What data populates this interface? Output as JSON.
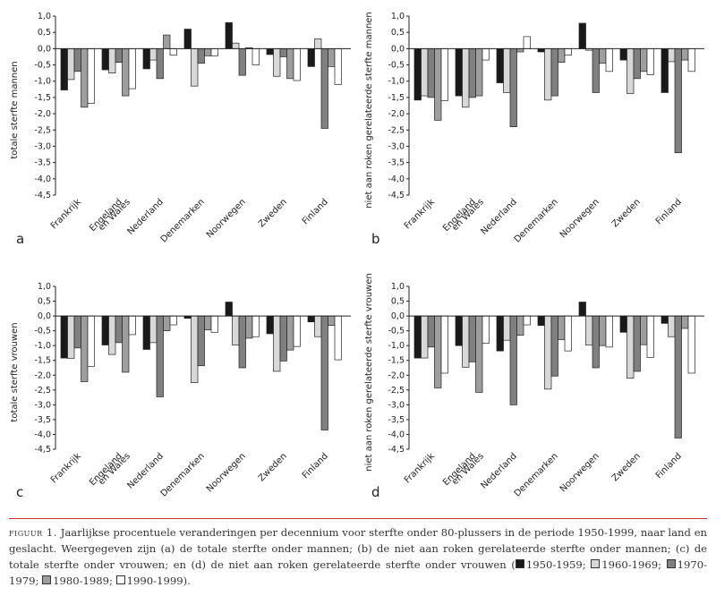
{
  "chart_data": [
    {
      "type": "bar",
      "panel_label": "a",
      "ylabel": "totale sterfte mannen",
      "ylim": [
        -4.5,
        1.0
      ],
      "yticks": [
        "1,0",
        "0,5",
        "0,0",
        "-0,5",
        "-1,0",
        "-1,5",
        "-2,0",
        "-2,5",
        "-3,0",
        "-3,5",
        "-4,0",
        "-4,5"
      ],
      "categories": [
        "Frankrijk",
        "Engeland|en Wales",
        "Nederland",
        "Denemarken",
        "Noorwegen",
        "Zweden",
        "Finland"
      ],
      "series": [
        {
          "name": "1950-1959",
          "color": "#1a1a1a",
          "values": [
            -1.27,
            -0.65,
            -0.62,
            0.6,
            0.8,
            -0.18,
            -0.55
          ]
        },
        {
          "name": "1960-1969",
          "color": "#d8d8d8",
          "values": [
            -0.95,
            -0.75,
            -0.35,
            -1.15,
            0.17,
            -0.85,
            0.3
          ]
        },
        {
          "name": "1970-1979",
          "color": "#808080",
          "values": [
            -0.7,
            -0.42,
            -0.92,
            -0.45,
            -0.82,
            -0.25,
            -2.45
          ]
        },
        {
          "name": "1980-1989",
          "color": "#9e9e9e",
          "values": [
            -1.8,
            -1.45,
            0.42,
            -0.22,
            0.03,
            -0.92,
            -0.55
          ]
        },
        {
          "name": "1990-1999",
          "color": "#ffffff",
          "values": [
            -1.68,
            -1.23,
            -0.2,
            -0.22,
            -0.5,
            -0.98,
            -1.1
          ]
        }
      ]
    },
    {
      "type": "bar",
      "panel_label": "b",
      "ylabel": "niet aan roken gerelateerde sterfte mannen",
      "ylim": [
        -4.5,
        1.0
      ],
      "yticks": [
        "1,0",
        "0,5",
        "0,0",
        "-0,5",
        "-1,0",
        "-1,5",
        "-2,0",
        "-2,5",
        "-3,0",
        "-3,5",
        "-4,0",
        "-4,5"
      ],
      "categories": [
        "Frankrijk",
        "Engeland|en Wales",
        "Nederland",
        "Denemarken",
        "Noorwegen",
        "Zweden",
        "Finland"
      ],
      "series": [
        {
          "name": "1950-1959",
          "color": "#1a1a1a",
          "values": [
            -1.58,
            -1.45,
            -1.05,
            -0.1,
            0.78,
            -0.35,
            -1.35
          ]
        },
        {
          "name": "1960-1969",
          "color": "#d8d8d8",
          "values": [
            -1.45,
            -1.8,
            -1.35,
            -1.58,
            -0.05,
            -1.38,
            -0.4
          ]
        },
        {
          "name": "1970-1979",
          "color": "#808080",
          "values": [
            -1.5,
            -1.5,
            -2.4,
            -1.45,
            -1.35,
            -0.92,
            -3.2
          ]
        },
        {
          "name": "1980-1989",
          "color": "#9e9e9e",
          "values": [
            -2.2,
            -1.45,
            -0.1,
            -0.42,
            -0.45,
            -0.7,
            -0.35
          ]
        },
        {
          "name": "1990-1999",
          "color": "#ffffff",
          "values": [
            -1.6,
            -0.35,
            0.37,
            -0.2,
            -0.7,
            -0.8,
            -0.7
          ]
        }
      ]
    },
    {
      "type": "bar",
      "panel_label": "c",
      "ylabel": "totale sterfte vrouwen",
      "ylim": [
        -4.5,
        1.0
      ],
      "yticks": [
        "1,0",
        "0,5",
        "0,0",
        "-0,5",
        "-1,0",
        "-1,5",
        "-2,0",
        "-2,5",
        "-3,0",
        "-3,5",
        "-4,0",
        "-4,5"
      ],
      "categories": [
        "Frankrijk",
        "Engeland|en Wales",
        "Nederland",
        "Denemarken",
        "Noorwegen",
        "Zweden",
        "Finland"
      ],
      "series": [
        {
          "name": "1950-1959",
          "color": "#1a1a1a",
          "values": [
            -1.42,
            -0.98,
            -1.13,
            -0.08,
            0.47,
            -0.6,
            -0.2
          ]
        },
        {
          "name": "1960-1969",
          "color": "#d8d8d8",
          "values": [
            -1.43,
            -1.3,
            -0.9,
            -2.25,
            -0.98,
            -1.87,
            -0.7
          ]
        },
        {
          "name": "1970-1979",
          "color": "#808080",
          "values": [
            -1.08,
            -0.9,
            -2.73,
            -1.68,
            -1.75,
            -1.52,
            -3.85
          ]
        },
        {
          "name": "1980-1989",
          "color": "#9e9e9e",
          "values": [
            -2.22,
            -1.9,
            -0.5,
            -0.47,
            -0.75,
            -1.15,
            -0.32
          ]
        },
        {
          "name": "1990-1999",
          "color": "#ffffff",
          "values": [
            -1.7,
            -0.63,
            -0.3,
            -0.55,
            -0.7,
            -1.03,
            -1.48
          ]
        }
      ]
    },
    {
      "type": "bar",
      "panel_label": "d",
      "ylabel": "niet aan roken gerelateerde sterfte vrouwen",
      "ylim": [
        -4.5,
        1.0
      ],
      "yticks": [
        "1,0",
        "0,5",
        "0,0",
        "-0,5",
        "-1,0",
        "-1,5",
        "-2,0",
        "-2,5",
        "-3,0",
        "-3,5",
        "-4,0",
        "-4,5"
      ],
      "categories": [
        "Frankrijk",
        "Engeland|en Wales",
        "Nederland",
        "Denemarken",
        "Noorwegen",
        "Zweden",
        "Finland"
      ],
      "series": [
        {
          "name": "1950-1959",
          "color": "#1a1a1a",
          "values": [
            -1.42,
            -1.0,
            -1.18,
            -0.32,
            0.47,
            -0.55,
            -0.25
          ]
        },
        {
          "name": "1960-1969",
          "color": "#d8d8d8",
          "values": [
            -1.42,
            -1.73,
            -0.82,
            -2.47,
            -0.98,
            -2.1,
            -0.7
          ]
        },
        {
          "name": "1970-1979",
          "color": "#808080",
          "values": [
            -1.05,
            -1.55,
            -3.0,
            -2.03,
            -1.75,
            -1.87,
            -4.12
          ]
        },
        {
          "name": "1980-1989",
          "color": "#9e9e9e",
          "values": [
            -2.43,
            -2.58,
            -0.65,
            -0.8,
            -1.0,
            -0.97,
            -0.42
          ]
        },
        {
          "name": "1990-1999",
          "color": "#ffffff",
          "values": [
            -1.93,
            -0.92,
            -0.3,
            -1.18,
            -1.05,
            -1.4,
            -1.93
          ]
        }
      ]
    }
  ],
  "caption": {
    "figure_label": "figuur 1.",
    "text": "Jaarlijkse procentuele veranderingen per decennium voor sterfte onder 80-plussers in de periode 1950-1999, naar land en geslacht. Weergegeven zijn (a) de totale sterfte onder mannen; (b) de niet aan roken gerelateerde sterfte onder mannen; (c) de totale sterfte onder vrouwen; en (d) de niet aan roken gerelateerde sterfte onder vrouwen (",
    "legend": [
      {
        "label": "1950-1959",
        "color": "#1a1a1a"
      },
      {
        "label": "1960-1969",
        "color": "#d8d8d8"
      },
      {
        "label": "1970-1979",
        "color": "#808080"
      },
      {
        "label": "1980-1989",
        "color": "#9e9e9e"
      },
      {
        "label": "1990-1999",
        "color": "#ffffff"
      }
    ],
    "closing": ")."
  }
}
